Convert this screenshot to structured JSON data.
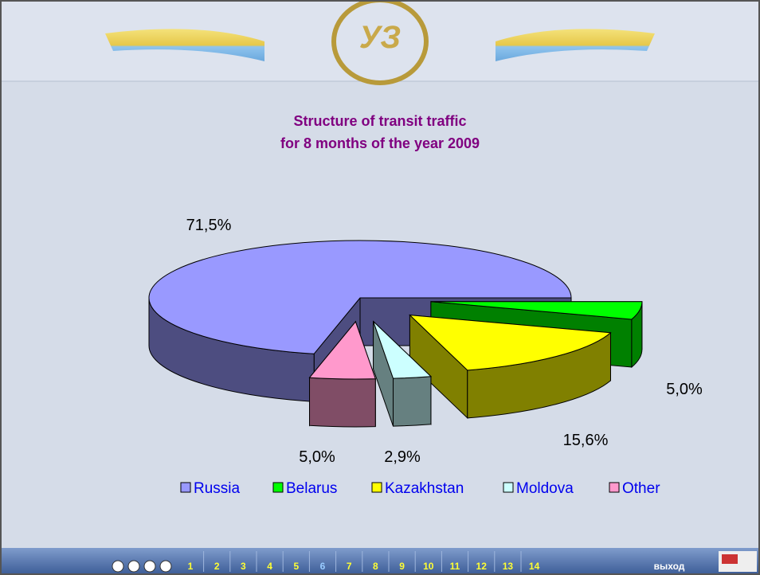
{
  "header": {
    "logo": "УЗ"
  },
  "chart_data": {
    "type": "pie3d",
    "title": "Structure of transit traffic\nfor 8 months of the year 2009",
    "categories": [
      "Russia",
      "Belarus",
      "Kazakhstan",
      "Moldova",
      "Other"
    ],
    "values": [
      71.5,
      5.0,
      15.6,
      2.9,
      5.0
    ],
    "value_labels": [
      "71,5%",
      "5,0%",
      "15,6%",
      "2,9%",
      "5,0%"
    ],
    "colors": [
      "#9999ff",
      "#00ff00",
      "#ffff00",
      "#ccffff",
      "#ff99cc"
    ],
    "legend": "bottom"
  },
  "nav": {
    "pages": [
      {
        "label": "1"
      },
      {
        "label": "2"
      },
      {
        "label": "3"
      },
      {
        "label": "4"
      },
      {
        "label": "5"
      },
      {
        "label": "6",
        "active": true
      },
      {
        "label": "7"
      },
      {
        "label": "8"
      },
      {
        "label": "9"
      },
      {
        "label": "10"
      },
      {
        "label": "11"
      },
      {
        "label": "12"
      },
      {
        "label": "13"
      },
      {
        "label": "14"
      }
    ],
    "exit": "выход"
  }
}
